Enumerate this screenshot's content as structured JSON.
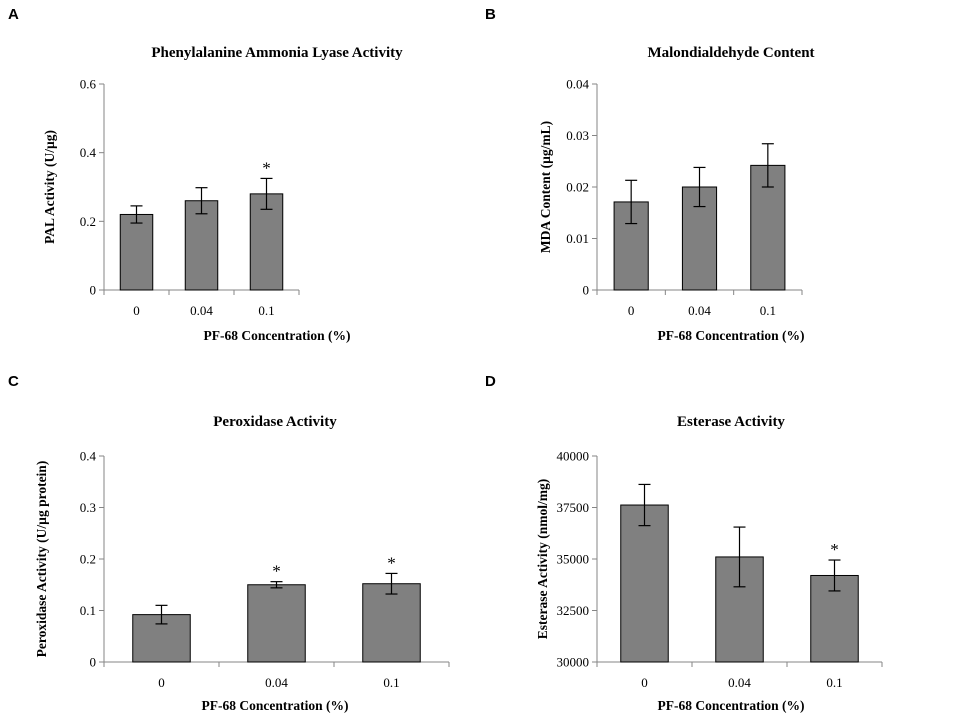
{
  "chart_data": [
    {
      "panel": "A",
      "type": "bar",
      "title": "Phenylalanine Ammonia Lyase Activity",
      "xlabel": "PF-68 Concentration (%)",
      "ylabel": "PAL Activity (U/µg)",
      "categories": [
        "0",
        "0.04",
        "0.1"
      ],
      "values": [
        0.22,
        0.26,
        0.28
      ],
      "errors": [
        0.025,
        0.038,
        0.045
      ],
      "significance": [
        "",
        "",
        "*"
      ],
      "ylim": [
        0,
        0.6
      ],
      "yticks": [
        0,
        0.2,
        0.4,
        0.6
      ],
      "ytick_labels": [
        "0",
        "0.2",
        "0.4",
        "0.6"
      ]
    },
    {
      "panel": "B",
      "type": "bar",
      "title": "Malondialdehyde Content",
      "xlabel": "PF-68 Concentration (%)",
      "ylabel": "MDA Content (µg/mL)",
      "categories": [
        "0",
        "0.04",
        "0.1"
      ],
      "values": [
        0.0171,
        0.02,
        0.0242
      ],
      "errors": [
        0.0042,
        0.0038,
        0.0042
      ],
      "significance": [
        "",
        "",
        ""
      ],
      "ylim": [
        0,
        0.04
      ],
      "yticks": [
        0,
        0.01,
        0.02,
        0.03,
        0.04
      ],
      "ytick_labels": [
        "0",
        "0.01",
        "0.02",
        "0.03",
        "0.04"
      ]
    },
    {
      "panel": "C",
      "type": "bar",
      "title": "Peroxidase Activity",
      "xlabel": "PF-68 Concentration (%)",
      "ylabel": "Peroxidase Activity (U/µg protein)",
      "categories": [
        "0",
        "0.04",
        "0.1"
      ],
      "values": [
        0.092,
        0.15,
        0.152
      ],
      "errors": [
        0.018,
        0.006,
        0.02
      ],
      "significance": [
        "",
        "*",
        "*"
      ],
      "ylim": [
        0,
        0.4
      ],
      "yticks": [
        0,
        0.1,
        0.2,
        0.3,
        0.4
      ],
      "ytick_labels": [
        "0",
        "0.1",
        "0.2",
        "0.3",
        "0.4"
      ]
    },
    {
      "panel": "D",
      "type": "bar",
      "title": "Esterase Activity",
      "xlabel": "PF-68 Concentration (%)",
      "ylabel": "Esterase Activity (nmol/mg)",
      "categories": [
        "0",
        "0.04",
        "0.1"
      ],
      "values": [
        37620,
        35100,
        34200
      ],
      "errors": [
        1000,
        1450,
        750
      ],
      "significance": [
        "",
        "",
        "*"
      ],
      "ylim": [
        30000,
        40000
      ],
      "yticks": [
        30000,
        32500,
        35000,
        37500,
        40000
      ],
      "ytick_labels": [
        "30000",
        "32500",
        "35000",
        "37500",
        "40000"
      ]
    }
  ]
}
